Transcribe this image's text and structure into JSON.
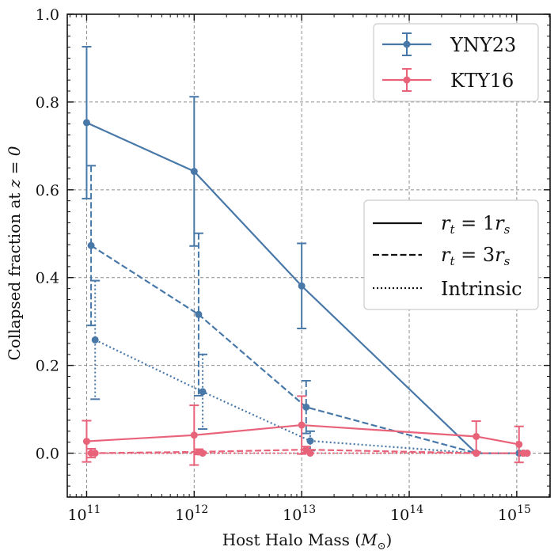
{
  "chart_data": {
    "type": "line",
    "xscale": "log",
    "xlim_exp": [
      10.82,
      15.31
    ],
    "ylim": [
      -0.1,
      1.0
    ],
    "xlabel": "Host Halo Mass (",
    "xlabel_math": "M",
    "xlabel_sub": "⊙",
    "xlabel_close": ")",
    "ylabel": "Collapsed fraction at ",
    "ylabel_math": "z = 0",
    "grid": true,
    "x_ticks": [
      {
        "exp": 11,
        "base": "10",
        "sup": "11"
      },
      {
        "exp": 12,
        "base": "10",
        "sup": "12"
      },
      {
        "exp": 13,
        "base": "10",
        "sup": "13"
      },
      {
        "exp": 14,
        "base": "10",
        "sup": "14"
      },
      {
        "exp": 15,
        "base": "10",
        "sup": "15"
      }
    ],
    "y_ticks": [
      "0.0",
      "0.2",
      "0.4",
      "0.6",
      "0.8",
      "1.0"
    ],
    "y_tick_values": [
      0.0,
      0.2,
      0.4,
      0.6,
      0.8,
      1.0
    ],
    "colors": {
      "YNY23": "#4878a8",
      "KTY16": "#e8637a"
    },
    "series": [
      {
        "name": "YNY23",
        "style": "solid",
        "x": [
          100000000000.0,
          1000000000000.0,
          10000000000000.0,
          420000000000000.0,
          1050000000000000.0
        ],
        "y": [
          0.753,
          0.642,
          0.381,
          0.0,
          0.0
        ],
        "err": [
          0.173,
          0.17,
          0.097,
          0.0,
          0.0
        ]
      },
      {
        "name": "YNY23",
        "style": "dashed",
        "x": [
          110000000000.0,
          1100000000000.0,
          11000000000000.0,
          420000000000000.0,
          1150000000000000.0
        ],
        "y": [
          0.473,
          0.316,
          0.105,
          0.0,
          0.0
        ],
        "err": [
          0.182,
          0.185,
          0.06,
          0.0,
          0.0
        ]
      },
      {
        "name": "YNY23",
        "style": "dotted",
        "x": [
          120000000000.0,
          1200000000000.0,
          12000000000000.0,
          420000000000000.0,
          1250000000000000.0
        ],
        "y": [
          0.258,
          0.14,
          0.028,
          0.0,
          0.0
        ],
        "err": [
          0.135,
          0.085,
          0.022,
          0.0,
          0.0
        ]
      },
      {
        "name": "KTY16",
        "style": "solid",
        "x": [
          100000000000.0,
          1000000000000.0,
          10000000000000.0,
          420000000000000.0,
          1050000000000000.0
        ],
        "y": [
          0.027,
          0.041,
          0.064,
          0.038,
          0.02
        ],
        "err": [
          0.047,
          0.068,
          0.066,
          0.035,
          0.041
        ]
      },
      {
        "name": "KTY16",
        "style": "dashed",
        "x": [
          110000000000.0,
          1100000000000.0,
          11000000000000.0,
          420000000000000.0,
          1150000000000000.0
        ],
        "y": [
          0.0,
          0.003,
          0.008,
          0.0,
          0.0
        ],
        "err": [
          0.01,
          0.006,
          0.007,
          0.0,
          0.0
        ]
      },
      {
        "name": "KTY16",
        "style": "dotted",
        "x": [
          120000000000.0,
          1200000000000.0,
          12000000000000.0,
          420000000000000.0,
          1250000000000000.0
        ],
        "y": [
          0.0,
          0.0,
          0.0,
          0.0,
          0.0
        ],
        "err": [
          0.0,
          0.0,
          0.0,
          0.0,
          0.0
        ]
      }
    ],
    "legend_series": [
      "YNY23",
      "KTY16"
    ],
    "legend_styles": [
      {
        "style": "solid",
        "prefix": "r",
        "sub": "t",
        "eq": " = 1",
        "suffix": "r",
        "suffix_sub": "s"
      },
      {
        "style": "dashed",
        "prefix": "r",
        "sub": "t",
        "eq": " = 3",
        "suffix": "r",
        "suffix_sub": "s"
      },
      {
        "style": "dotted",
        "label": "Intrinsic"
      }
    ]
  }
}
